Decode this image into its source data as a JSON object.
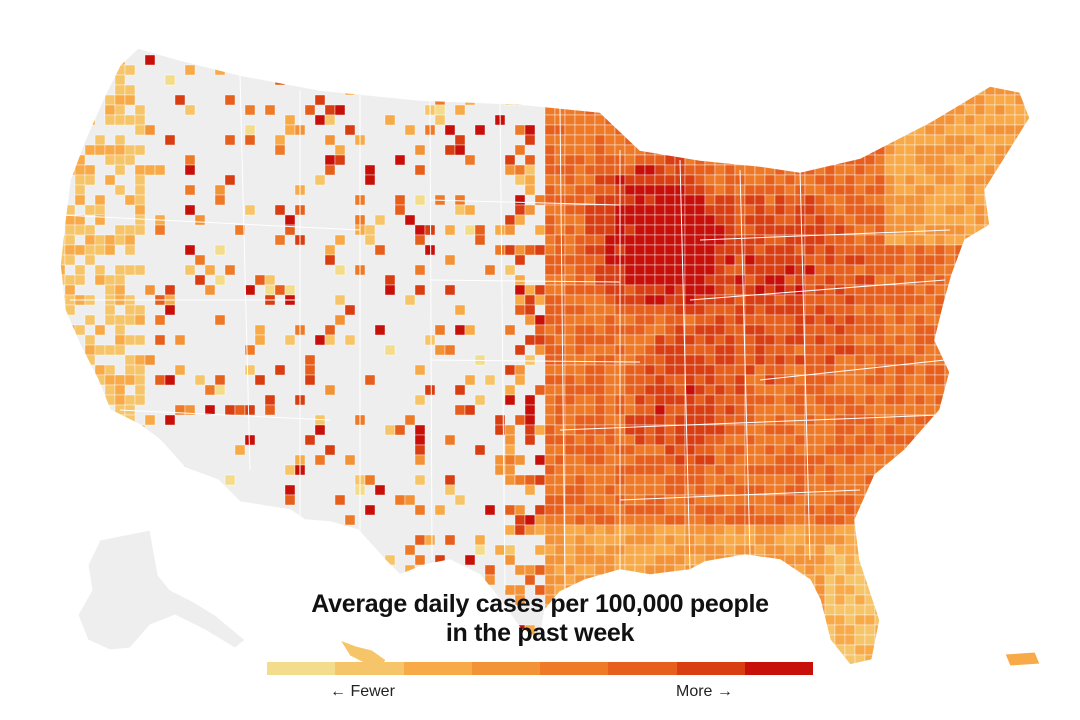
{
  "legend": {
    "title_line1": "Average daily cases per 100,000 people",
    "title_line2": "in the past week",
    "fewer_label": "← Fewer",
    "more_label": "More →",
    "scale_colors": [
      "#f3dd8c",
      "#f6c56a",
      "#f7aa47",
      "#f39338",
      "#ee7a28",
      "#e65f1d",
      "#d93d12",
      "#c8100a"
    ]
  },
  "map": {
    "land_color": "#eeeeee",
    "boundary_color": "#ffffff",
    "regions": [
      {
        "name": "contiguous-us",
        "intensity_by_area": {
          "pacific-coast": 1,
          "mountain-west": 0,
          "upper-midwest": 7,
          "great-lakes": 6,
          "south": 4,
          "gulf-coast": 2,
          "northeast": 3,
          "florida": 3
        }
      },
      {
        "name": "alaska",
        "intensity": 0
      },
      {
        "name": "hawaii",
        "intensity": 1
      },
      {
        "name": "puerto-rico",
        "intensity": 3
      }
    ]
  }
}
